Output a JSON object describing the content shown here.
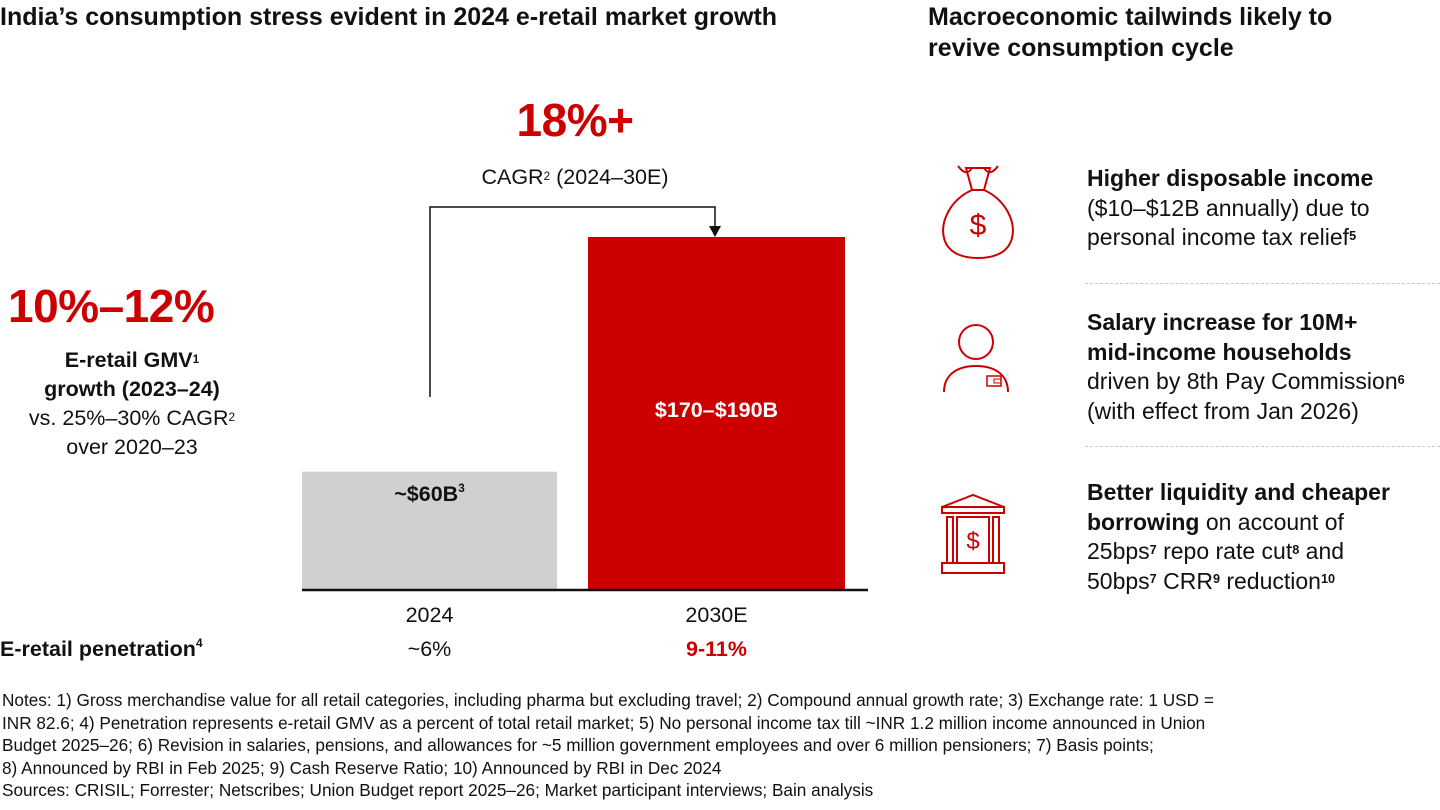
{
  "left": {
    "title": "India’s consumption stress evident in 2024 e-retail market growth",
    "growth_value": "10%–12%",
    "growth_line1": "E-retail GMV",
    "growth_line1_sup": "1",
    "growth_line2": "growth (2023–24)",
    "growth_line3": "vs. 25%–30% CAGR",
    "growth_line3_sup": "2",
    "growth_line4": "over 2020–23",
    "cagr_value": "18%+",
    "cagr_label": "CAGR",
    "cagr_label_sup": "2",
    "cagr_period": " (2024–30E)",
    "bar1_label": "~$60B",
    "bar1_label_sup": "3",
    "bar2_label": "$170–$190B",
    "penetration_label": "E-retail penetration",
    "penetration_sup": "4",
    "penetration_2024": "~6%",
    "penetration_2030": "9-11%"
  },
  "chart_data": {
    "type": "bar",
    "categories": [
      "2024",
      "2030E"
    ],
    "values": [
      60,
      180
    ],
    "value_labels": [
      "~$60B",
      "$170–$190B"
    ],
    "colors": [
      "#d0d0d0",
      "#cc0000"
    ],
    "annotation": "18%+ CAGR (2024–30E)"
  },
  "right": {
    "title_line1": "Macroeconomic tailwinds likely to",
    "title_line2": "revive consumption cycle",
    "items": [
      {
        "icon": "money-bag-icon",
        "bold": "Higher disposable income",
        "text_line1": "($10–$12B annually) due to",
        "text_line2": "personal income tax relief",
        "sup": "5"
      },
      {
        "icon": "person-wallet-icon",
        "bold_line1": "Salary increase for 10M+",
        "bold_line2": "mid-income households",
        "text_line1": "driven by 8th Pay Commission",
        "sup": "6",
        "text_line2": "(with effect from Jan 2026)"
      },
      {
        "icon": "bank-icon",
        "bold_line1": "Better liquidity and cheaper",
        "bold_line2": "borrowing",
        "text_after_bold": " on account of",
        "line3_a": "25bps",
        "line3_sup1": "7",
        "line3_b": " repo rate cut",
        "line3_sup2": "8",
        "line3_c": " and",
        "line4_a": "50bps",
        "line4_sup1": "7",
        "line4_b": " CRR",
        "line4_sup2": "9",
        "line4_c": " reduction",
        "line4_sup3": "10"
      }
    ]
  },
  "notes": {
    "line1": "Notes: 1) Gross merchandise value for all retail categories, including pharma but excluding travel; 2) Compound annual growth rate; 3) Exchange rate: 1 USD =",
    "line2": "INR 82.6; 4) Penetration represents e-retail GMV as a percent of total retail market; 5) No personal income tax till ~INR 1.2 million income announced in Union",
    "line3": "Budget 2025–26; 6) Revision in salaries, pensions, and allowances for ~5 million government employees and over 6 million pensioners; 7) Basis points;",
    "line4": "8) Announced by RBI in Feb 2025; 9) Cash Reserve Ratio; 10) Announced by RBI in Dec 2024",
    "sources": "Sources: CRISIL; Forrester; Netscribes; Union Budget report 2025–26; Market participant interviews; Bain analysis"
  }
}
